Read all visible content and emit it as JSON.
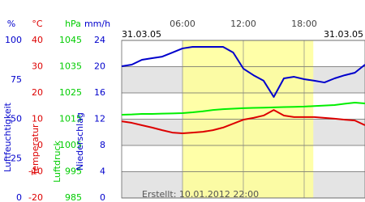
{
  "chart_data": {
    "type": "line",
    "date_left": "31.03.05",
    "date_right": "31.03.05",
    "footer": "Erstellt: 10.01.2012 22:00",
    "xlim": [
      0,
      24
    ],
    "xticks": [
      {
        "value": 6,
        "label": "06:00"
      },
      {
        "value": 12,
        "label": "12:00"
      },
      {
        "value": 18,
        "label": "18:00"
      }
    ],
    "daylight": [
      6,
      18.9
    ],
    "daylight_color": "#ffff99",
    "y_axes": [
      {
        "unit": "%",
        "label": "Luftfeuchtigkeit",
        "color": "#0000cc",
        "ylim": [
          0,
          100
        ],
        "yticks": [
          0,
          25,
          50,
          75,
          100
        ]
      },
      {
        "unit": "°C",
        "label": "Temperatur",
        "color": "#dd0000",
        "ylim": [
          -20,
          40
        ],
        "yticks": [
          -20,
          -10,
          0,
          10,
          20,
          30,
          40
        ]
      },
      {
        "unit": "hPa",
        "label": "Luftdruck",
        "color": "#00cc00",
        "ylim": [
          985,
          1045
        ],
        "yticks": [
          985,
          995,
          1005,
          1015,
          1025,
          1035,
          1045
        ]
      },
      {
        "unit": "mm/h",
        "label": "Niederschlag",
        "color": "#0000cc",
        "ylim": [
          0,
          24
        ],
        "yticks": [
          0,
          4,
          8,
          12,
          16,
          20,
          24
        ]
      }
    ],
    "x": [
      0,
      1,
      2,
      3,
      4,
      5,
      6,
      7,
      8,
      9,
      10,
      11,
      12,
      13,
      14,
      15,
      16,
      17,
      18,
      19,
      20,
      21,
      22,
      23,
      24
    ],
    "series": [
      {
        "axis": 0,
        "color": "#0000cc",
        "values": [
          83.6,
          84.6,
          87.7,
          88.7,
          89.7,
          92.3,
          94.9,
          95.9,
          95.9,
          95.9,
          95.9,
          92.3,
          82.1,
          77.9,
          74.4,
          64.1,
          75.9,
          76.9,
          75.4,
          74.4,
          73.3,
          75.9,
          77.9,
          79.5,
          84.6
        ]
      },
      {
        "axis": 2,
        "color": "#00ee00",
        "values": [
          1016.7,
          1016.8,
          1017.0,
          1017.0,
          1017.1,
          1017.2,
          1017.3,
          1017.6,
          1018.0,
          1018.5,
          1018.8,
          1019.0,
          1019.2,
          1019.3,
          1019.4,
          1019.5,
          1019.6,
          1019.7,
          1019.8,
          1020.0,
          1020.2,
          1020.4,
          1020.9,
          1021.3,
          1021.0
        ]
      },
      {
        "axis": 1,
        "color": "#dd0000",
        "values": [
          9.2,
          8.6,
          7.7,
          6.8,
          5.8,
          4.9,
          4.6,
          4.9,
          5.2,
          5.8,
          6.8,
          8.3,
          9.8,
          10.5,
          11.4,
          13.5,
          11.4,
          10.8,
          10.8,
          10.8,
          10.5,
          10.2,
          9.8,
          9.5,
          7.7
        ]
      }
    ]
  }
}
